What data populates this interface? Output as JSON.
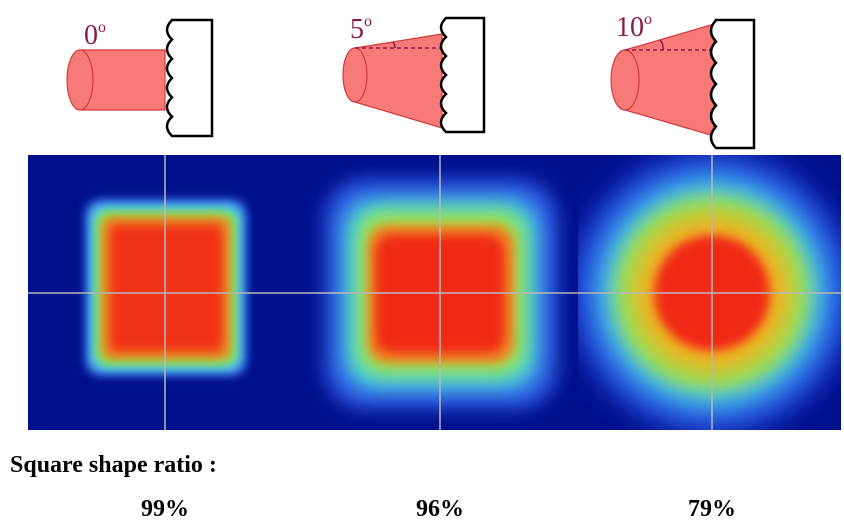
{
  "panels": [
    {
      "angle": "0",
      "angle_sup": "o",
      "ratio": "99%"
    },
    {
      "angle": "5",
      "angle_sup": "o",
      "ratio": "96%"
    },
    {
      "angle": "10",
      "angle_sup": "o",
      "ratio": "79%"
    }
  ],
  "caption": "Square shape ratio :"
}
